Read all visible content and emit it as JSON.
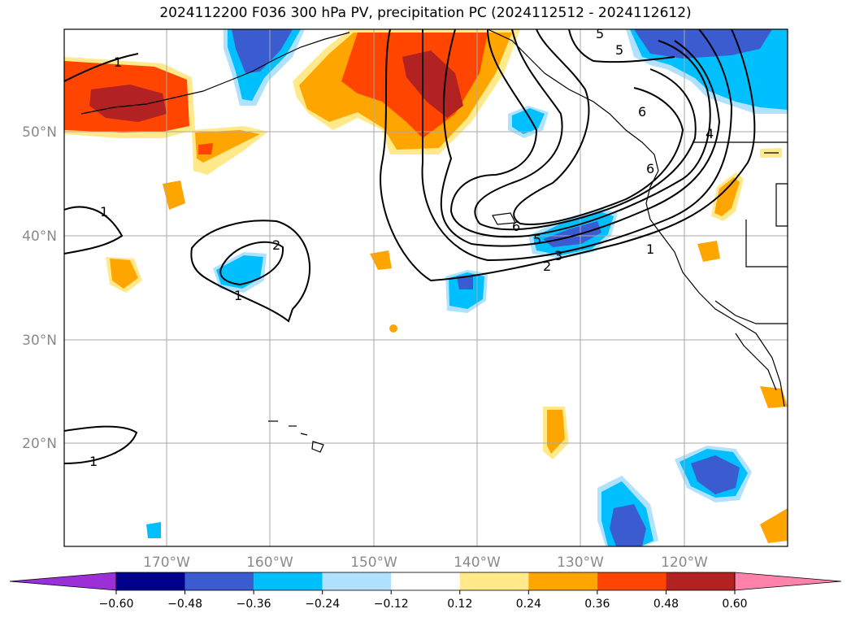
{
  "title": "2024112200 F036 300 hPa PV, precipitation PC (2024112512 - 2024112612)",
  "lat_labels": [
    "50°N",
    "40°N",
    "30°N",
    "20°N"
  ],
  "lon_labels": [
    "170°W",
    "160°W",
    "150°W",
    "140°W",
    "130°W",
    "120°W"
  ],
  "contour_labels": [
    "1",
    "1",
    "2",
    "1",
    "1",
    "1",
    "5",
    "3",
    "2",
    "6",
    "6",
    "5",
    "4",
    "5",
    "6"
  ],
  "colorbar": {
    "ticks": [
      "−0.60",
      "−0.48",
      "−0.36",
      "−0.24",
      "−0.12",
      "0.12",
      "0.24",
      "0.36",
      "0.48",
      "0.60"
    ],
    "colors": [
      "#9b30d9",
      "#00008b",
      "#3b5bd0",
      "#00bfff",
      "#b0e2ff",
      "#ffffff",
      "#ffe98a",
      "#ffa500",
      "#ff4500",
      "#b22222",
      "#ff82ab"
    ]
  }
}
